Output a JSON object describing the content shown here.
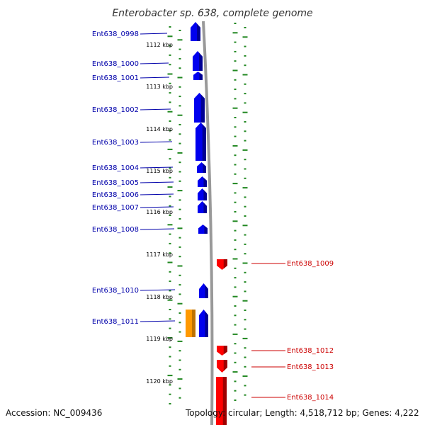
{
  "title": "Enterobacter sp. 638, complete genome",
  "footer": {
    "accession": "Accession: NC_009436",
    "topology": "Topology: circular; Length: 4,518,712 bp; Genes: 4,222"
  },
  "colors": {
    "forward_gene": "#0000ee",
    "reverse_gene": "#ff0000",
    "orange_feature": "#ff9900",
    "tick": "#228822",
    "backbone": "#999999",
    "forward_label": "#0000aa",
    "reverse_label": "#cc0000"
  },
  "axis_labels": [
    "1112 kbp",
    "1113 kbp",
    "1114 kbp",
    "1115 kbp",
    "1116 kbp",
    "1117 kbp",
    "1118 kbp",
    "1119 kbp",
    "1120 kbp"
  ],
  "forward_genes": [
    {
      "label": "Ent638_0998"
    },
    {
      "label": "Ent638_1000"
    },
    {
      "label": "Ent638_1001"
    },
    {
      "label": "Ent638_1002"
    },
    {
      "label": "Ent638_1003"
    },
    {
      "label": "Ent638_1004"
    },
    {
      "label": "Ent638_1005"
    },
    {
      "label": "Ent638_1006"
    },
    {
      "label": "Ent638_1007"
    },
    {
      "label": "Ent638_1008"
    },
    {
      "label": "Ent638_1010"
    },
    {
      "label": "Ent638_1011"
    }
  ],
  "reverse_genes": [
    {
      "label": "Ent638_1009"
    },
    {
      "label": "Ent638_1012"
    },
    {
      "label": "Ent638_1013"
    },
    {
      "label": "Ent638_1014"
    }
  ]
}
